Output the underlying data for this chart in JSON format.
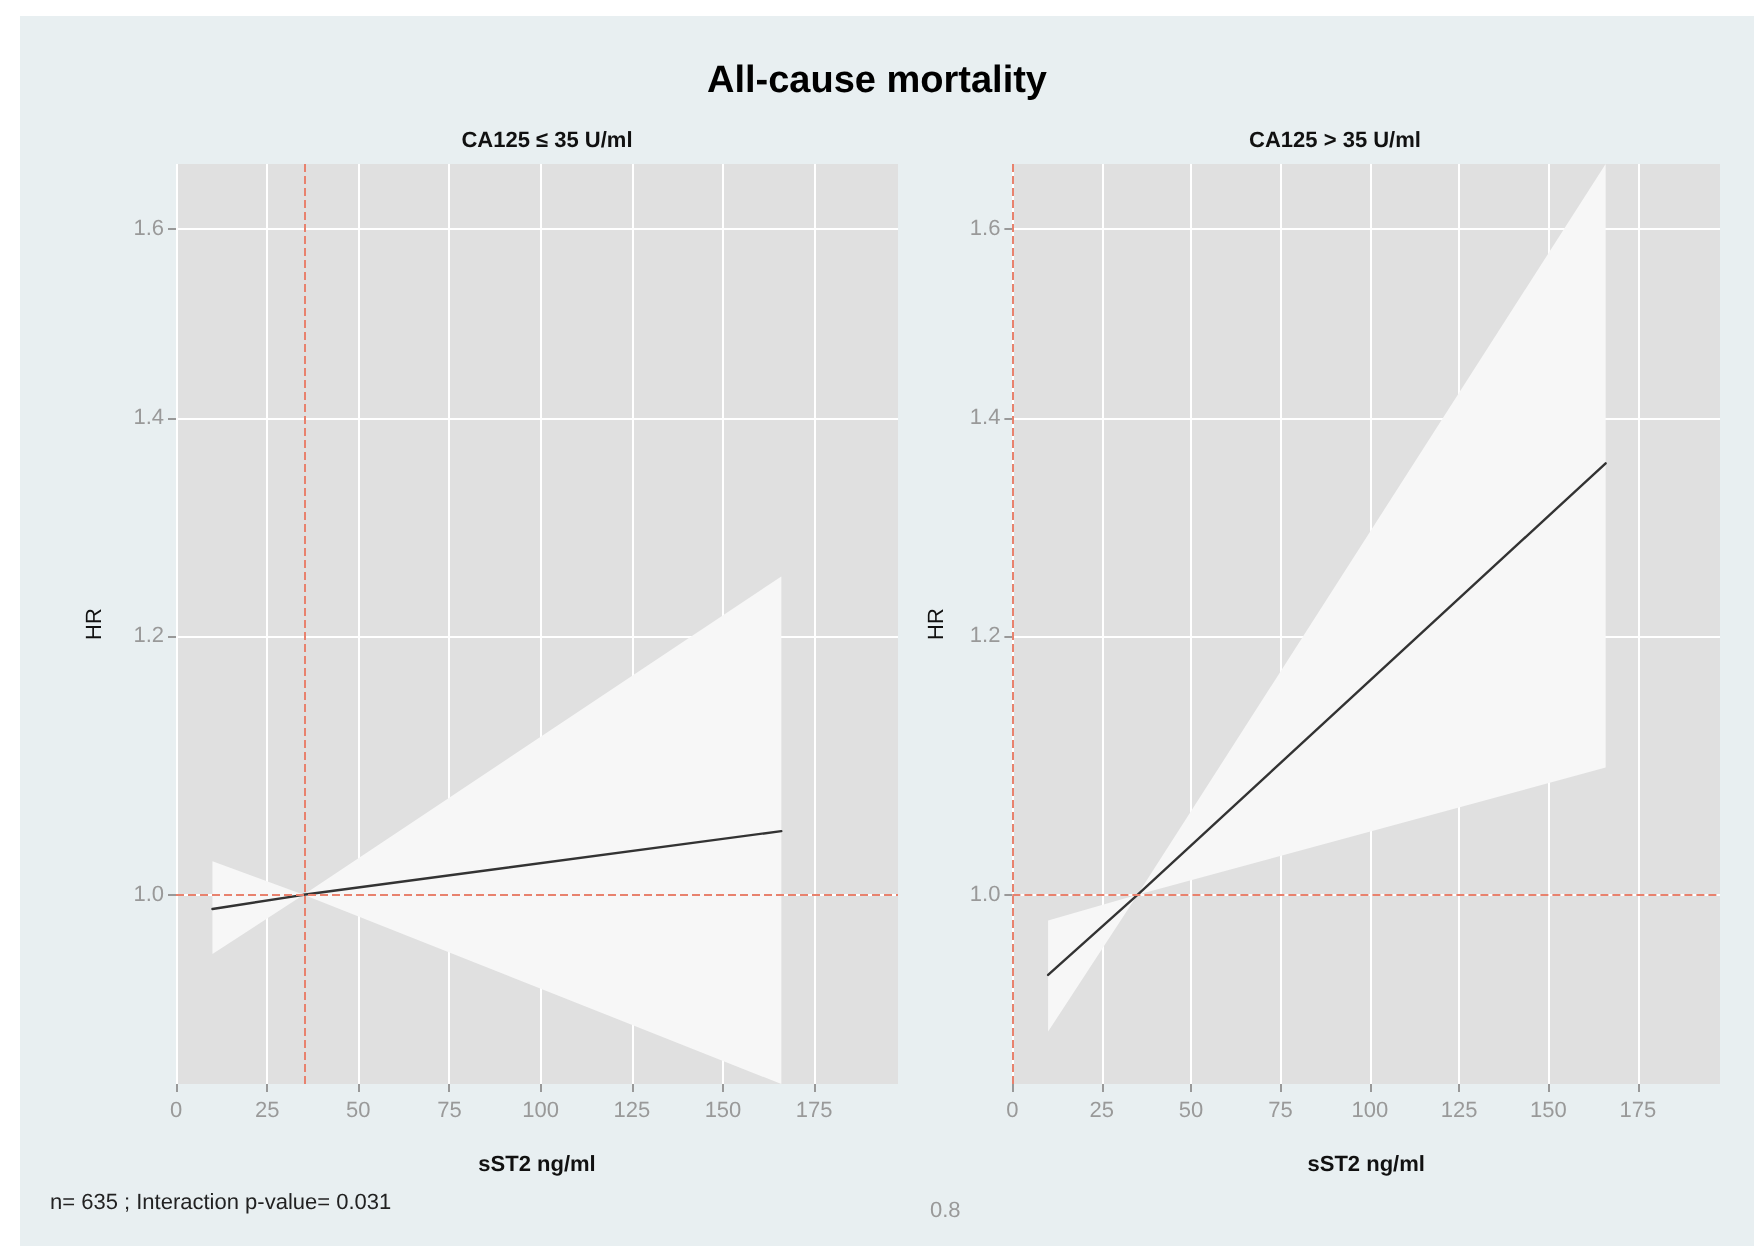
{
  "chart_data": [
    {
      "type": "line",
      "title": "All-cause mortality",
      "subtitle": "CA125 ≤ 35 U/ml",
      "xlabel": "sST2 ng/ml",
      "ylabel": "HR",
      "xlim": [
        0,
        198
      ],
      "xticks": [
        0,
        25,
        50,
        75,
        100,
        125,
        150,
        175
      ],
      "ylim": [
        0.875,
        1.675
      ],
      "yticks": [
        {
          "value": 1,
          "label": "1.0"
        },
        {
          "value": 1.2,
          "label": "1.2"
        },
        {
          "value": 1.4,
          "label": "1.4"
        },
        {
          "value": 1.6,
          "label": "1.6"
        }
      ],
      "log": "y",
      "grid": true,
      "marker": "none",
      "line_style": "solid",
      "x": [
        10,
        35,
        166
      ],
      "series": [
        {
          "color": "#333333",
          "values": [
            0.99,
            1.0,
            1.046
          ],
          "lower": [
            0.959,
            1.0,
            0.875
          ],
          "upper": [
            1.024,
            1.0,
            1.252
          ]
        }
      ],
      "ref_lines": [
        {
          "axis": "x",
          "value": 35,
          "color": "#e8826e",
          "line_style": "dashed"
        },
        {
          "axis": "y",
          "value": 1,
          "color": "#e8826e",
          "line_style": "dashed"
        }
      ],
      "annotations": [
        "n= 635 ; Interaction p-value= 0.031"
      ]
    },
    {
      "type": "line",
      "subtitle": "CA125 > 35 U/ml",
      "xlabel": "sST2 ng/ml",
      "ylabel": "HR",
      "xlim": [
        0,
        198
      ],
      "xticks": [
        0,
        25,
        50,
        75,
        100,
        125,
        150,
        175
      ],
      "ylim": [
        0.875,
        1.675
      ],
      "yticks": [
        {
          "value": 1,
          "label": "1.0"
        },
        {
          "value": 1.2,
          "label": "1.2"
        },
        {
          "value": 1.4,
          "label": "1.4"
        },
        {
          "value": 1.6,
          "label": "1.6"
        }
      ],
      "log": "y",
      "grid": true,
      "marker": "none",
      "line_style": "solid",
      "x": [
        10,
        35,
        166
      ],
      "series": [
        {
          "color": "#333333",
          "values": [
            0.945,
            1.0,
            1.356
          ],
          "lower": [
            0.908,
            1.0,
            1.094
          ],
          "upper": [
            0.982,
            1.0,
            1.675
          ]
        }
      ],
      "ref_lines": [
        {
          "axis": "x",
          "value": 0,
          "color": "#e8826e",
          "line_style": "dashed"
        },
        {
          "axis": "y",
          "value": 1,
          "color": "#e8826e",
          "line_style": "dashed"
        }
      ],
      "annotations": [
        "0.8"
      ]
    }
  ]
}
